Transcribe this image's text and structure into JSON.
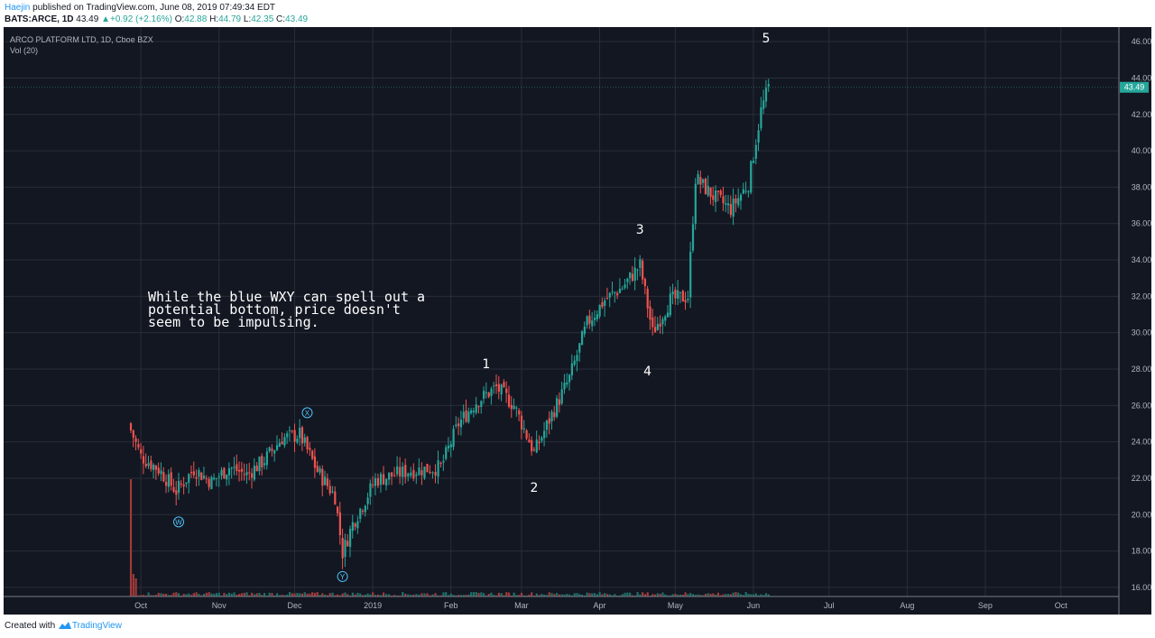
{
  "header": {
    "author": "Haejin",
    "published_text": " published on TradingView.com, June 08, 2019 07:49:34 EDT",
    "symbol": "BATS:ARCE, 1D",
    "last": "43.49",
    "change": "+0.92 (+2.16%)",
    "o_label": "O:",
    "o_value": "42.88",
    "h_label": "H:",
    "h_value": "44.79",
    "l_label": "L:",
    "l_value": "42.35",
    "c_label": "C:",
    "c_value": "43.49"
  },
  "chart_title": "ARCO PLATFORM LTD, 1D, Cboe BZX",
  "volume_label": "Vol (20)",
  "price_tag": "43.49",
  "annotation": "While the blue WXY can spell out a potential bottom, price doesn't seem to be impulsing.",
  "footer": {
    "created_with": "Created with",
    "brand": "TradingView"
  },
  "colors": {
    "background": "#131722",
    "grid": "#2a2e39",
    "up": "#26a69a",
    "down": "#ef5350",
    "up_volume": "#1e6f68",
    "down_volume": "#a03a3a",
    "wave_circle": "#4fc3f7",
    "axis_text": "#b2b5be"
  },
  "chart_data": {
    "type": "candlestick",
    "y_range": [
      15.5,
      46.8
    ],
    "y_ticks": [
      "46.00",
      "44.00",
      "42.00",
      "40.00",
      "38.00",
      "36.00",
      "34.00",
      "32.00",
      "30.00",
      "28.00",
      "26.00",
      "24.00",
      "22.00",
      "20.00",
      "18.00",
      "16.00"
    ],
    "x_ticks": [
      "Oct",
      "Nov",
      "Dec",
      "2019",
      "Feb",
      "Mar",
      "Apr",
      "May",
      "Jun",
      "Jul",
      "Aug",
      "Sep",
      "Oct"
    ],
    "last_price": 43.49,
    "price_path": [
      {
        "date": "2018-09-26",
        "close": 25.0
      },
      {
        "date": "2018-10-01",
        "close": 23.2
      },
      {
        "date": "2018-10-08",
        "close": 22.5
      },
      {
        "date": "2018-10-15",
        "close": 21.3
      },
      {
        "date": "2018-10-22",
        "close": 22.5
      },
      {
        "date": "2018-10-29",
        "close": 21.8
      },
      {
        "date": "2018-11-05",
        "close": 22.6
      },
      {
        "date": "2018-11-12",
        "close": 22.2
      },
      {
        "date": "2018-11-19",
        "close": 23.0
      },
      {
        "date": "2018-11-26",
        "close": 24.2
      },
      {
        "date": "2018-12-03",
        "close": 24.4
      },
      {
        "date": "2018-12-10",
        "close": 22.4
      },
      {
        "date": "2018-12-17",
        "close": 21.0
      },
      {
        "date": "2018-12-20",
        "close": 17.9
      },
      {
        "date": "2018-12-24",
        "close": 19.5
      },
      {
        "date": "2019-01-02",
        "close": 21.9
      },
      {
        "date": "2019-01-15",
        "close": 22.4
      },
      {
        "date": "2019-01-28",
        "close": 22.6
      },
      {
        "date": "2019-02-04",
        "close": 25.0
      },
      {
        "date": "2019-02-11",
        "close": 26.2
      },
      {
        "date": "2019-02-19",
        "close": 27.0
      },
      {
        "date": "2019-02-26",
        "close": 26.0
      },
      {
        "date": "2019-03-06",
        "close": 23.4
      },
      {
        "date": "2019-03-13",
        "close": 25.5
      },
      {
        "date": "2019-03-20",
        "close": 27.5
      },
      {
        "date": "2019-03-27",
        "close": 30.5
      },
      {
        "date": "2019-04-03",
        "close": 31.8
      },
      {
        "date": "2019-04-10",
        "close": 32.5
      },
      {
        "date": "2019-04-17",
        "close": 33.7
      },
      {
        "date": "2019-04-22",
        "close": 30.0
      },
      {
        "date": "2019-04-29",
        "close": 31.8
      },
      {
        "date": "2019-05-06",
        "close": 32.0
      },
      {
        "date": "2019-05-09",
        "close": 38.5
      },
      {
        "date": "2019-05-16",
        "close": 37.5
      },
      {
        "date": "2019-05-23",
        "close": 36.8
      },
      {
        "date": "2019-05-30",
        "close": 38.2
      },
      {
        "date": "2019-06-04",
        "close": 42.2
      },
      {
        "date": "2019-06-07",
        "close": 43.49
      }
    ],
    "wave_labels": [
      {
        "text": "W",
        "date": "2018-10-16",
        "price": 19.6,
        "circled": true
      },
      {
        "text": "X",
        "date": "2018-12-06",
        "price": 25.6,
        "circled": true
      },
      {
        "text": "Y",
        "date": "2018-12-20",
        "price": 16.6,
        "circled": true
      },
      {
        "text": "1",
        "date": "2019-02-15",
        "price": 28.3,
        "circled": false
      },
      {
        "text": "2",
        "date": "2019-03-06",
        "price": 21.5,
        "circled": false
      },
      {
        "text": "3",
        "date": "2019-04-17",
        "price": 35.7,
        "circled": false
      },
      {
        "text": "4",
        "date": "2019-04-20",
        "price": 27.9,
        "circled": false
      },
      {
        "text": "5",
        "date": "2019-06-06",
        "price": 46.2,
        "circled": false
      }
    ]
  }
}
